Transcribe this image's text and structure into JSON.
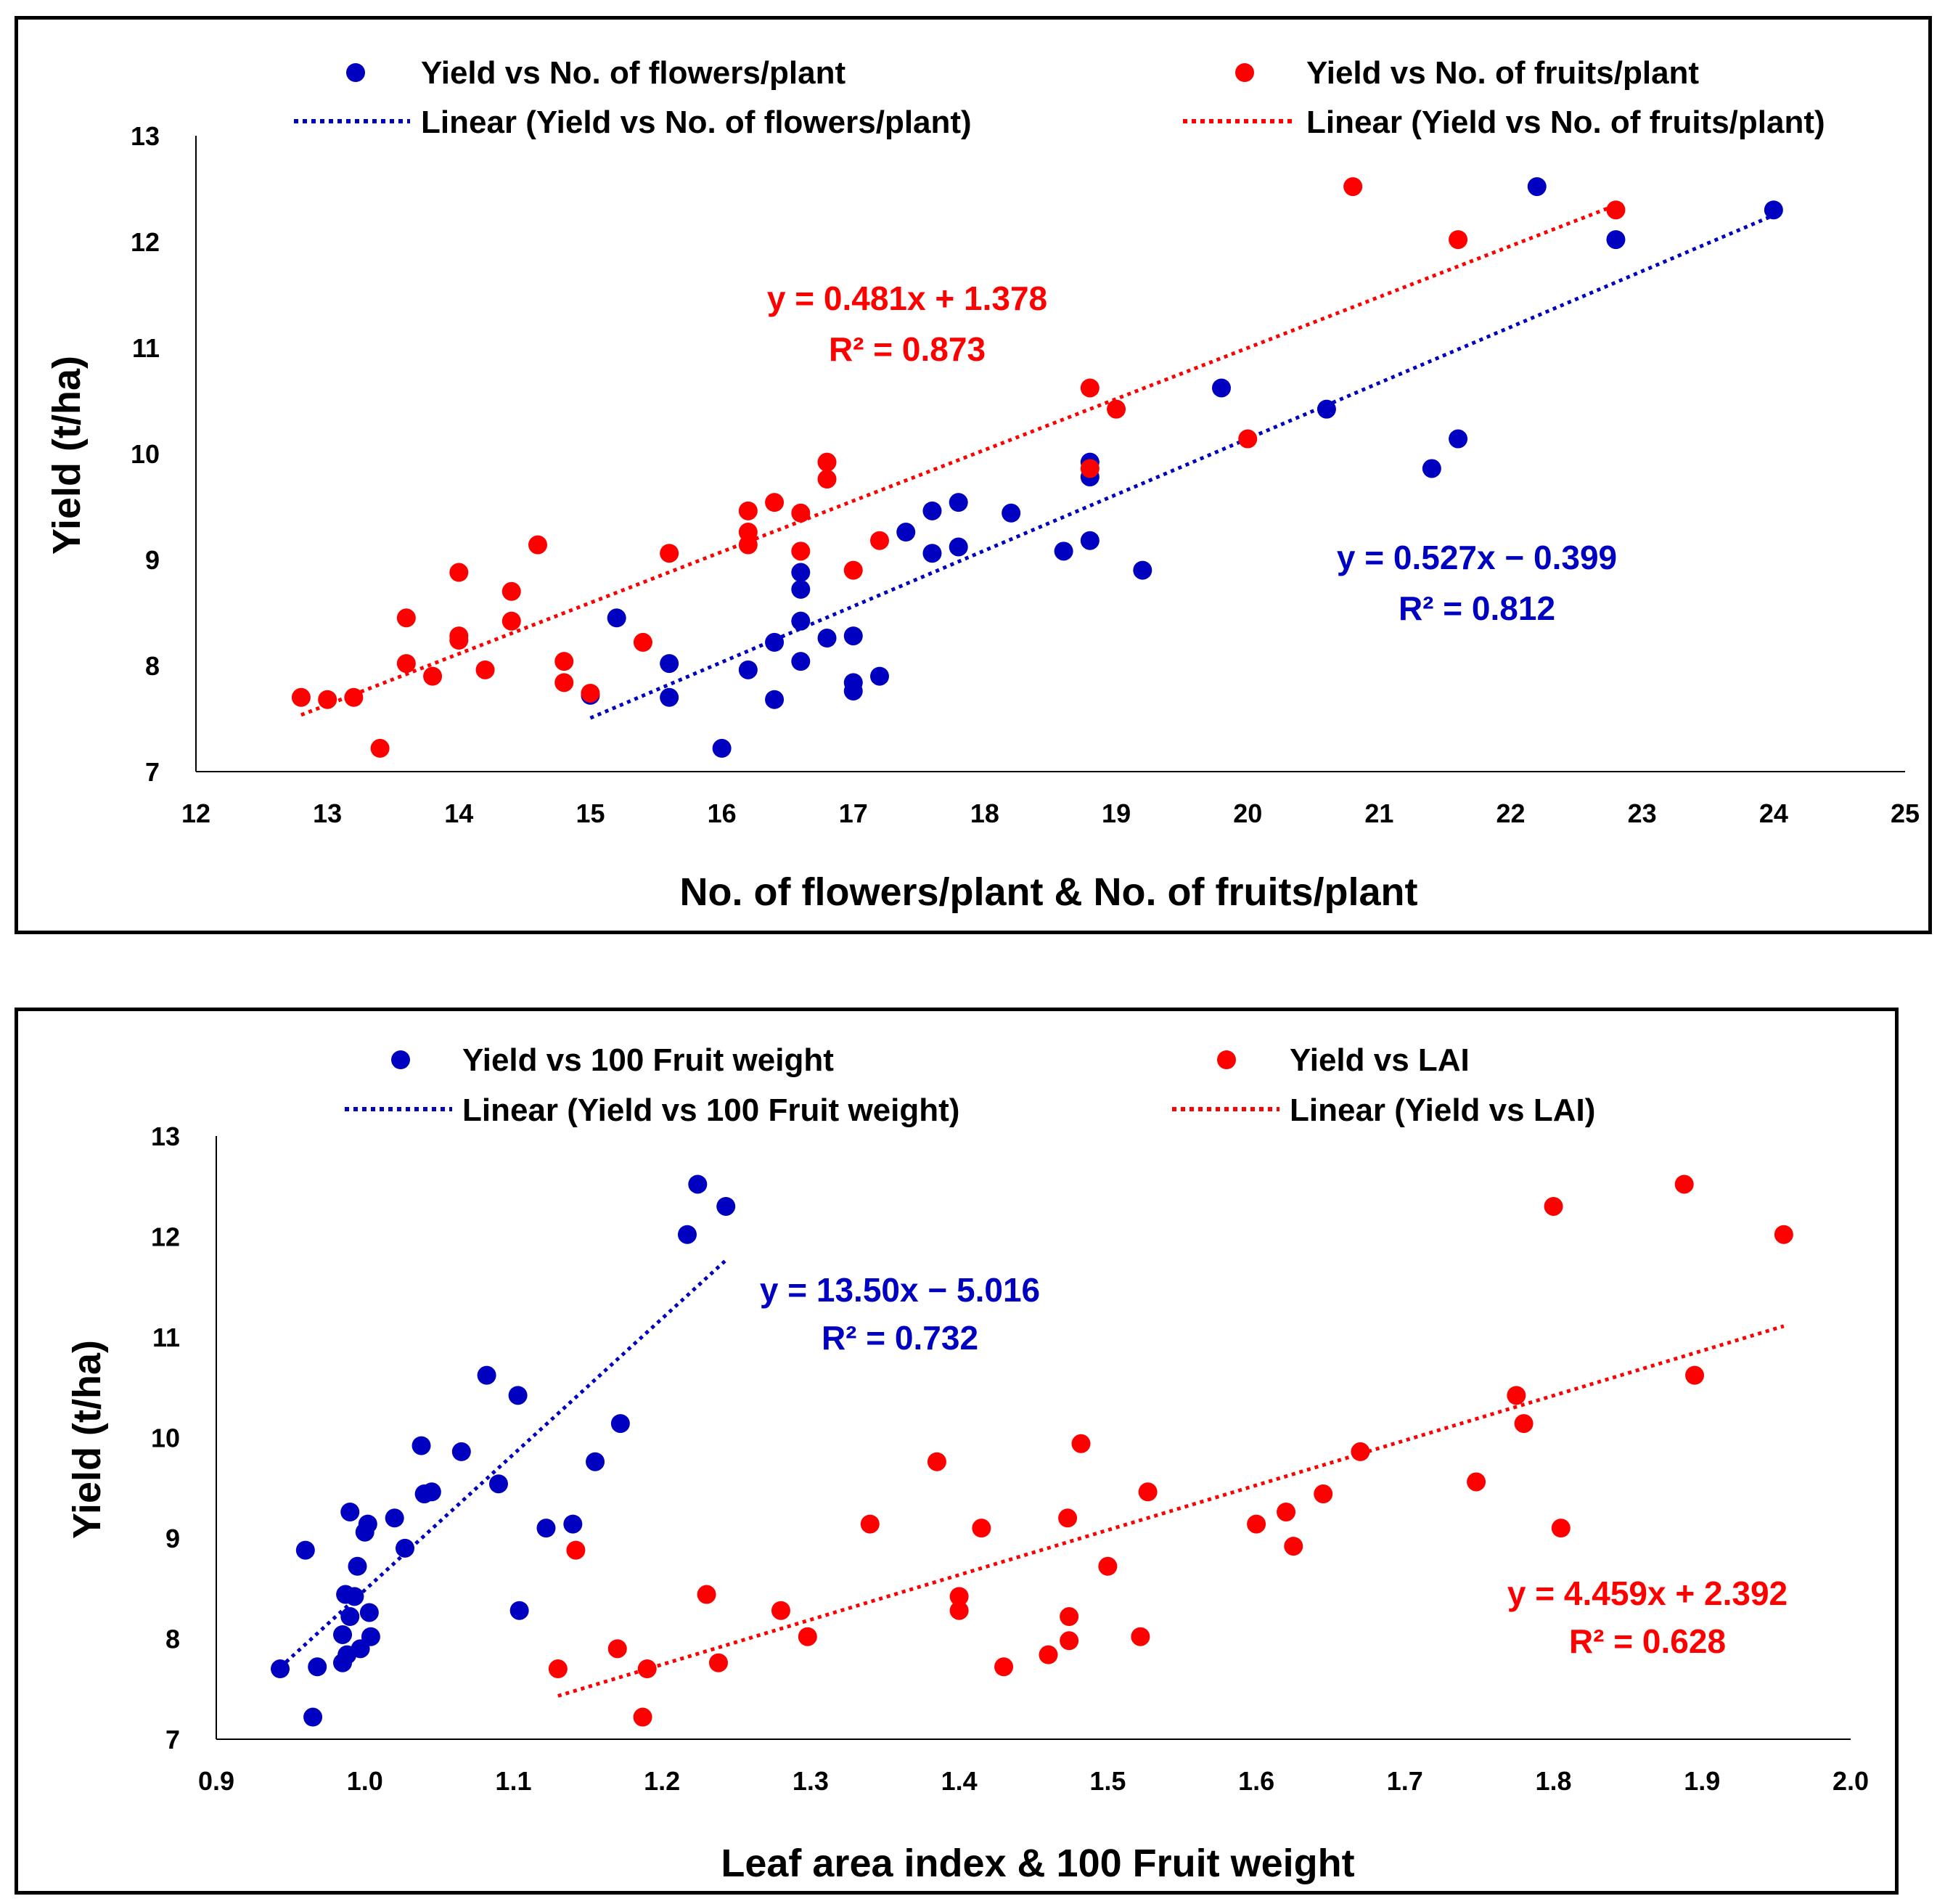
{
  "chart_data": [
    {
      "type": "scatter",
      "xlabel": "No. of flowers/plant & No. of fruits/plant",
      "ylabel": "Yield (t/ha)",
      "xlim": [
        12,
        25
      ],
      "ylim": [
        7,
        13
      ],
      "xticks": [
        "12",
        "13",
        "14",
        "15",
        "16",
        "17",
        "18",
        "19",
        "20",
        "21",
        "22",
        "23",
        "24",
        "25"
      ],
      "yticks": [
        "7",
        "8",
        "9",
        "10",
        "11",
        "12",
        "13"
      ],
      "legend": {
        "series_a": "Yield vs No. of flowers/plant",
        "series_b": "Yield vs No. of fruits/plant",
        "trend_a": "Linear (Yield vs No. of flowers/plant)",
        "trend_b": "Linear (Yield vs No. of fruits/plant)"
      },
      "series": [
        {
          "name": "Yield vs No. of flowers/plant",
          "color": "#0000c0",
          "points": [
            [
              15.0,
              7.72
            ],
            [
              15.2,
              8.45
            ],
            [
              15.6,
              8.02
            ],
            [
              15.6,
              7.7
            ],
            [
              16.0,
              7.22
            ],
            [
              16.2,
              7.96
            ],
            [
              16.4,
              8.22
            ],
            [
              16.4,
              7.68
            ],
            [
              16.6,
              8.88
            ],
            [
              16.6,
              8.72
            ],
            [
              16.6,
              8.42
            ],
            [
              16.6,
              8.04
            ],
            [
              16.8,
              8.26
            ],
            [
              17.0,
              8.28
            ],
            [
              17.0,
              7.84
            ],
            [
              17.0,
              7.76
            ],
            [
              17.2,
              7.9
            ],
            [
              17.4,
              9.26
            ],
            [
              17.6,
              9.46
            ],
            [
              17.6,
              9.06
            ],
            [
              17.8,
              9.54
            ],
            [
              17.8,
              9.12
            ],
            [
              18.2,
              9.44
            ],
            [
              18.6,
              9.08
            ],
            [
              18.8,
              9.92
            ],
            [
              18.8,
              9.78
            ],
            [
              18.8,
              9.18
            ],
            [
              19.2,
              8.9
            ],
            [
              19.8,
              10.62
            ],
            [
              20.6,
              10.42
            ],
            [
              21.4,
              9.86
            ],
            [
              21.6,
              10.14
            ],
            [
              22.2,
              12.52
            ],
            [
              22.8,
              12.02
            ],
            [
              24.0,
              12.3
            ]
          ],
          "trend": {
            "slope": 0.527,
            "intercept": -0.399,
            "x_range": [
              15.0,
              24.0
            ]
          },
          "equation": "y = 0.527x − 0.399",
          "r2": "R² = 0.812"
        },
        {
          "name": "Yield vs No. of fruits/plant",
          "color": "#ff0000",
          "points": [
            [
              12.8,
              7.7
            ],
            [
              13.0,
              7.68
            ],
            [
              13.2,
              7.7
            ],
            [
              13.4,
              7.22
            ],
            [
              13.6,
              8.45
            ],
            [
              13.6,
              8.02
            ],
            [
              13.8,
              7.9
            ],
            [
              14.0,
              8.88
            ],
            [
              14.0,
              8.28
            ],
            [
              14.0,
              8.24
            ],
            [
              14.2,
              7.96
            ],
            [
              14.4,
              8.7
            ],
            [
              14.4,
              8.42
            ],
            [
              14.6,
              9.14
            ],
            [
              14.8,
              8.04
            ],
            [
              14.8,
              7.84
            ],
            [
              15.0,
              7.74
            ],
            [
              15.4,
              8.22
            ],
            [
              15.6,
              9.06
            ],
            [
              16.2,
              9.46
            ],
            [
              16.2,
              9.26
            ],
            [
              16.2,
              9.14
            ],
            [
              16.4,
              9.54
            ],
            [
              16.6,
              9.44
            ],
            [
              16.6,
              9.08
            ],
            [
              16.8,
              9.92
            ],
            [
              16.8,
              9.76
            ],
            [
              17.0,
              8.9
            ],
            [
              17.2,
              9.18
            ],
            [
              18.8,
              10.62
            ],
            [
              18.8,
              9.86
            ],
            [
              19.0,
              10.42
            ],
            [
              20.0,
              10.14
            ],
            [
              20.8,
              12.52
            ],
            [
              21.6,
              12.02
            ],
            [
              22.8,
              12.3
            ]
          ],
          "trend": {
            "slope": 0.481,
            "intercept": 1.378,
            "x_range": [
              12.8,
              22.8
            ]
          },
          "equation": "y = 0.481x + 1.378",
          "r2": "R² = 0.873"
        }
      ]
    },
    {
      "type": "scatter",
      "xlabel": "Leaf area index & 100 Fruit weight",
      "ylabel": "Yield (t/ha)",
      "xlim": [
        0.9,
        2.0
      ],
      "ylim": [
        7,
        13
      ],
      "xticks": [
        "0.9",
        "1.0",
        "1.1",
        "1.2",
        "1.3",
        "1.4",
        "1.5",
        "1.6",
        "1.7",
        "1.8",
        "1.9",
        "2.0"
      ],
      "yticks": [
        "7",
        "8",
        "9",
        "10",
        "11",
        "12",
        "13"
      ],
      "legend": {
        "series_a": "Yield vs 100 Fruit weight",
        "series_b": "Yield vs LAI",
        "trend_a": "Linear (Yield vs 100 Fruit weight)",
        "trend_b": "Linear (Yield vs LAI)"
      },
      "series": [
        {
          "name": "Yield vs 100 Fruit weight",
          "color": "#0000c0",
          "points": [
            [
              0.943,
              7.7
            ],
            [
              0.96,
              8.88
            ],
            [
              0.965,
              7.22
            ],
            [
              0.968,
              7.72
            ],
            [
              0.985,
              7.76
            ],
            [
              0.985,
              8.04
            ],
            [
              0.987,
              8.44
            ],
            [
              0.988,
              7.84
            ],
            [
              0.99,
              9.26
            ],
            [
              0.99,
              8.22
            ],
            [
              0.993,
              8.42
            ],
            [
              0.995,
              8.72
            ],
            [
              0.997,
              7.9
            ],
            [
              1.0,
              9.06
            ],
            [
              1.002,
              9.14
            ],
            [
              1.003,
              8.26
            ],
            [
              1.004,
              8.02
            ],
            [
              1.02,
              9.2
            ],
            [
              1.027,
              8.9
            ],
            [
              1.038,
              9.92
            ],
            [
              1.04,
              9.44
            ],
            [
              1.045,
              9.46
            ],
            [
              1.065,
              9.86
            ],
            [
              1.082,
              10.62
            ],
            [
              1.09,
              9.54
            ],
            [
              1.103,
              10.42
            ],
            [
              1.104,
              8.28
            ],
            [
              1.122,
              9.1
            ],
            [
              1.14,
              9.14
            ],
            [
              1.155,
              9.76
            ],
            [
              1.172,
              10.14
            ],
            [
              1.217,
              12.02
            ],
            [
              1.224,
              12.52
            ],
            [
              1.243,
              12.3
            ]
          ],
          "trend": {
            "slope": 13.5,
            "intercept": -5.016,
            "x_range": [
              0.943,
              1.243
            ]
          },
          "equation": "y = 13.50x − 5.016",
          "r2": "R² = 0.732"
        },
        {
          "name": "Yield vs LAI",
          "color": "#ff0000",
          "points": [
            [
              1.13,
              7.7
            ],
            [
              1.142,
              8.88
            ],
            [
              1.17,
              7.9
            ],
            [
              1.187,
              7.22
            ],
            [
              1.19,
              7.7
            ],
            [
              1.23,
              8.44
            ],
            [
              1.238,
              7.76
            ],
            [
              1.28,
              8.28
            ],
            [
              1.298,
              8.02
            ],
            [
              1.34,
              9.14
            ],
            [
              1.385,
              9.76
            ],
            [
              1.4,
              8.42
            ],
            [
              1.4,
              8.28
            ],
            [
              1.415,
              9.1
            ],
            [
              1.43,
              7.72
            ],
            [
              1.46,
              7.84
            ],
            [
              1.473,
              9.2
            ],
            [
              1.474,
              7.98
            ],
            [
              1.474,
              8.22
            ],
            [
              1.482,
              9.94
            ],
            [
              1.5,
              8.72
            ],
            [
              1.522,
              8.02
            ],
            [
              1.527,
              9.46
            ],
            [
              1.6,
              9.14
            ],
            [
              1.62,
              9.26
            ],
            [
              1.625,
              8.92
            ],
            [
              1.645,
              9.44
            ],
            [
              1.67,
              9.86
            ],
            [
              1.748,
              9.56
            ],
            [
              1.775,
              10.42
            ],
            [
              1.78,
              10.14
            ],
            [
              1.8,
              12.3
            ],
            [
              1.805,
              9.1
            ],
            [
              1.888,
              12.52
            ],
            [
              1.895,
              10.62
            ],
            [
              1.955,
              12.02
            ]
          ],
          "trend": {
            "slope": 4.459,
            "intercept": 2.392,
            "x_range": [
              1.13,
              1.955
            ]
          },
          "equation": "y = 4.459x + 2.392",
          "r2": "R² = 0.628"
        }
      ]
    }
  ]
}
